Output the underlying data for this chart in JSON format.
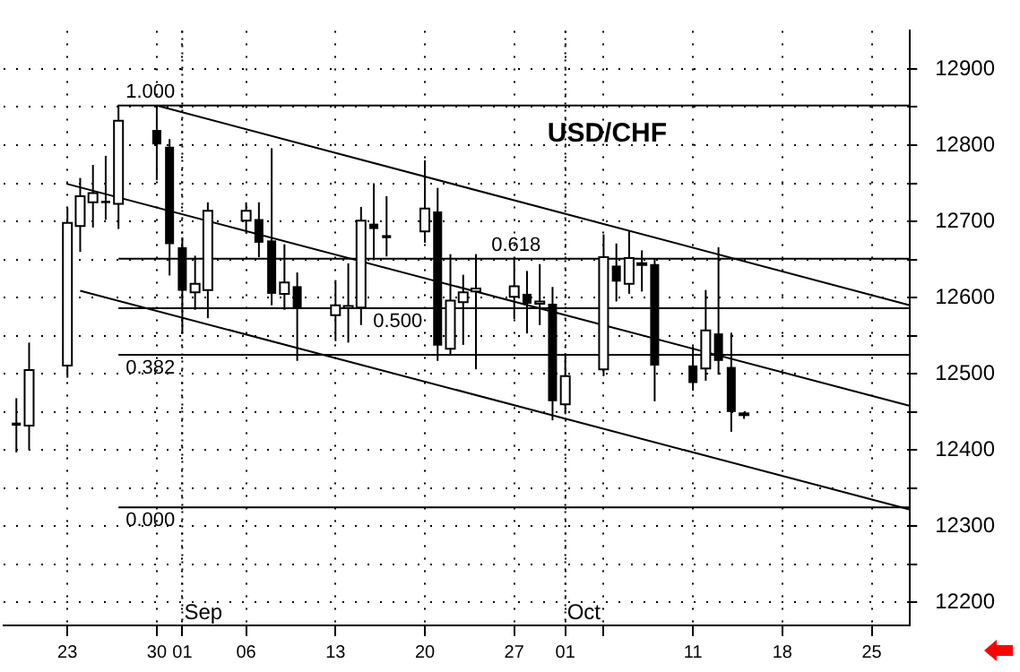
{
  "chart_data": {
    "type": "candlestick",
    "title": "USD/CHF",
    "x": [
      "--08-19",
      "--08-20",
      "--08-23",
      "--08-24",
      "--08-25",
      "--08-26",
      "--08-27",
      "--08-30",
      "--08-31",
      "--09-01",
      "--09-02",
      "--09-03",
      "--09-06",
      "--09-07",
      "--09-08",
      "--09-09",
      "--09-10",
      "--09-13",
      "--09-14",
      "--09-15",
      "--09-16",
      "--09-17",
      "--09-20",
      "--09-21",
      "--09-22",
      "--09-23",
      "--09-24",
      "--09-27",
      "--09-28",
      "--09-29",
      "--09-30",
      "--10-01",
      "--10-04",
      "--10-05",
      "--10-06",
      "--10-07",
      "--10-08",
      "--10-11",
      "--10-12",
      "--10-13",
      "--10-14",
      "--10-15"
    ],
    "ohlc": [
      [
        12436,
        12468,
        12397,
        12432
      ],
      [
        12432,
        12541,
        12400,
        12505
      ],
      [
        12511,
        12718,
        12495,
        12698
      ],
      [
        12694,
        12757,
        12660,
        12733
      ],
      [
        12725,
        12774,
        12692,
        12737
      ],
      [
        12727,
        12786,
        12702,
        12724
      ],
      [
        12723,
        12853,
        12690,
        12832
      ],
      [
        12820,
        12852,
        12754,
        12801
      ],
      [
        12798,
        12808,
        12629,
        12670
      ],
      [
        12666,
        12679,
        12553,
        12609
      ],
      [
        12607,
        12655,
        12584,
        12618
      ],
      [
        12610,
        12725,
        12573,
        12714
      ],
      [
        12701,
        12725,
        12684,
        12714
      ],
      [
        12703,
        12725,
        12653,
        12672
      ],
      [
        12675,
        12796,
        12590,
        12605
      ],
      [
        12605,
        12670,
        12584,
        12620
      ],
      [
        12615,
        12633,
        12517,
        12586
      ],
      [
        12577,
        12623,
        12543,
        12590
      ],
      [
        12586,
        12645,
        12541,
        12589
      ],
      [
        12587,
        12719,
        12564,
        12701
      ],
      [
        12697,
        12750,
        12649,
        12690
      ],
      [
        12682,
        12733,
        12654,
        12678
      ],
      [
        12687,
        12780,
        12672,
        12717
      ],
      [
        12713,
        12744,
        12517,
        12537
      ],
      [
        12533,
        12657,
        12524,
        12596
      ],
      [
        12594,
        12630,
        12538,
        12607
      ],
      [
        12608,
        12657,
        12506,
        12612
      ],
      [
        12601,
        12653,
        12572,
        12615
      ],
      [
        12605,
        12635,
        12553,
        12592
      ],
      [
        12592,
        12644,
        12564,
        12595
      ],
      [
        12592,
        12614,
        12439,
        12464
      ],
      [
        12460,
        12527,
        12447,
        12497
      ],
      [
        12506,
        12683,
        12497,
        12653
      ],
      [
        12642,
        12671,
        12595,
        12621
      ],
      [
        12618,
        12687,
        12605,
        12652
      ],
      [
        12644,
        12662,
        12608,
        12644
      ],
      [
        12644,
        12651,
        12464,
        12511
      ],
      [
        12511,
        12536,
        12478,
        12488
      ],
      [
        12507,
        12610,
        12491,
        12557
      ],
      [
        12553,
        12666,
        12499,
        12517
      ],
      [
        12509,
        12554,
        12424,
        12450
      ],
      [
        12447,
        12450,
        12441,
        12447
      ]
    ],
    "series": [
      {
        "type": "line",
        "name": "1.000",
        "color": "#000000",
        "x": [
          "--08-27",
          "--10-28"
        ],
        "values": [
          12852,
          12852
        ]
      },
      {
        "type": "line",
        "name": "0.618",
        "color": "#000000",
        "x": [
          "--08-27",
          "--10-28"
        ],
        "values": [
          12651,
          12651
        ]
      },
      {
        "type": "line",
        "name": "0.500",
        "color": "#000000",
        "x": [
          "--08-27",
          "--10-28"
        ],
        "values": [
          12586,
          12586
        ]
      },
      {
        "type": "line",
        "name": "0.382",
        "color": "#000000",
        "x": [
          "--08-27",
          "--10-28"
        ],
        "values": [
          12525,
          12525
        ]
      },
      {
        "type": "line",
        "name": "0.000",
        "color": "#000000",
        "x": [
          "--08-27",
          "--10-28"
        ],
        "values": [
          12325,
          12325
        ]
      },
      {
        "type": "line",
        "color": "#000000",
        "x": [
          "--08-30",
          "--10-28"
        ],
        "values": [
          12852,
          12590
        ]
      },
      {
        "type": "line",
        "color": "#000000",
        "x": [
          "--08-23",
          "--10-28"
        ],
        "values": [
          12749,
          12458
        ]
      },
      {
        "type": "line",
        "color": "#000000",
        "x": [
          "--08-24",
          "--10-28"
        ],
        "values": [
          12609,
          12322
        ]
      }
    ],
    "ref_lines": [
      {
        "axis": "x",
        "value": "--09-01",
        "label": "Sep",
        "line_style": "dotted"
      },
      {
        "axis": "x",
        "value": "--10-01",
        "label": "Oct",
        "line_style": "dotted"
      }
    ],
    "xlim": [
      "--08-18",
      "--10-28"
    ],
    "xticks": [
      {
        "value": "--08-23",
        "label": "23"
      },
      {
        "value": "--08-30",
        "label": "30"
      },
      {
        "value": "--09-01",
        "label": "01"
      },
      {
        "value": "--09-06",
        "label": "06"
      },
      {
        "value": "--09-13",
        "label": "13"
      },
      {
        "value": "--09-20",
        "label": "20"
      },
      {
        "value": "--09-27",
        "label": "27"
      },
      {
        "value": "--10-01",
        "label": "01"
      },
      {
        "value": "--10-04",
        "label": null
      },
      {
        "value": "--10-11",
        "label": "11"
      },
      {
        "value": "--10-18",
        "label": "18"
      },
      {
        "value": "--10-25",
        "label": "25"
      }
    ],
    "ylim": [
      12170,
      12950
    ],
    "yticks": [
      12200,
      {
        "value": 12250,
        "label": null
      },
      12300,
      {
        "value": 12350,
        "label": null
      },
      12400,
      {
        "value": 12450,
        "label": null
      },
      12500,
      {
        "value": 12550,
        "label": null
      },
      12600,
      {
        "value": 12650,
        "label": null
      },
      12700,
      {
        "value": 12750,
        "label": null
      },
      12800,
      {
        "value": 12850,
        "label": null
      },
      12900
    ],
    "grid": true,
    "legend": false,
    "marker": "none",
    "line_style": "solid"
  }
}
